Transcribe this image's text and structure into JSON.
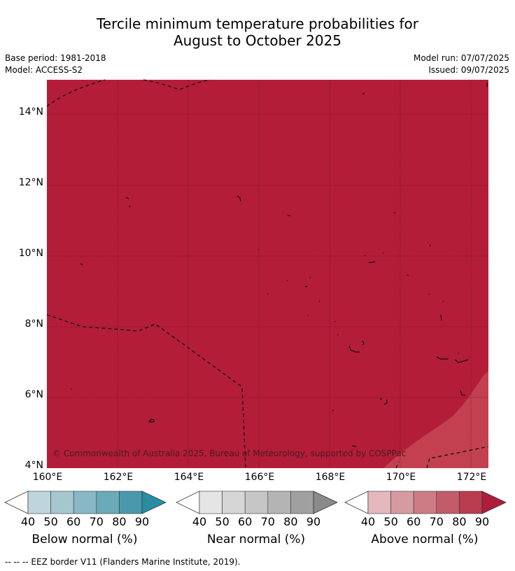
{
  "title_line1": "Tercile minimum temperature probabilities for",
  "title_line2": "August to October 2025",
  "base_period": "Base period: 1981-2018",
  "model": "Model: ACCESS-S2",
  "model_run": "Model run: 07/07/2025",
  "issued": "Issued: 09/07/2025",
  "copyright": "© Commonwealth of Australia 2025, Bureau of Meteorology, supported by COSPPac",
  "footnote": "-- -- -- EEZ border V11 (Flanders Marine Institute, 2019).",
  "map": {
    "lon_range": [
      160,
      172.5
    ],
    "lat_range": [
      4,
      15
    ],
    "lat_ticks": [
      "4°N",
      "6°N",
      "8°N",
      "10°N",
      "12°N",
      "14°N"
    ],
    "lon_ticks": [
      "160°E",
      "162°E",
      "164°E",
      "166°E",
      "168°E",
      "170°E",
      "172°E"
    ],
    "dominant_category": "Above normal",
    "dominant_probability_bin": "80-90",
    "secondary_probability_bin": "70-80",
    "colors": {
      "above_80_90": "#b31d38",
      "above_70_80": "#c2404f"
    }
  },
  "colorbars": [
    {
      "label": "Below normal (%)",
      "ticks": [
        "40",
        "50",
        "60",
        "70",
        "80",
        "90"
      ],
      "colors": [
        "#bfd5dc",
        "#a5c7cf",
        "#88b8c5",
        "#6aaab9",
        "#4999ab",
        "#2a8ea2"
      ]
    },
    {
      "label": "Near normal (%)",
      "ticks": [
        "40",
        "50",
        "60",
        "70",
        "80",
        "90"
      ],
      "colors": [
        "#e5e5e5",
        "#d6d6d6",
        "#c6c6c6",
        "#b4b4b4",
        "#a0a0a0",
        "#8a8a8a"
      ]
    },
    {
      "label": "Above normal (%)",
      "ticks": [
        "40",
        "50",
        "60",
        "70",
        "80",
        "90"
      ],
      "colors": [
        "#e3b9be",
        "#d69aa1",
        "#cd7b85",
        "#c25c68",
        "#b93d4f",
        "#b01c3c"
      ]
    }
  ]
}
